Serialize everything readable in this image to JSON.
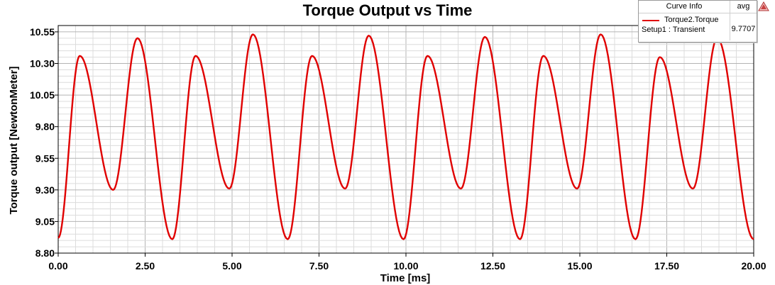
{
  "chart_data": {
    "type": "line",
    "title": "Torque Output vs Time",
    "xlabel": "Time [ms]",
    "ylabel": "Torque output [NewtonMeter]",
    "xlim": [
      0,
      20
    ],
    "ylim": [
      8.8,
      10.6
    ],
    "x_ticks": [
      "0.00",
      "2.50",
      "5.00",
      "7.50",
      "10.00",
      "12.50",
      "15.00",
      "17.50",
      "20.00"
    ],
    "y_ticks": [
      "8.80",
      "9.05",
      "9.30",
      "9.55",
      "9.80",
      "10.05",
      "10.30",
      "10.55"
    ],
    "grid": true,
    "legend_position": "top-right",
    "series": [
      {
        "name": "Torque2.Torque",
        "color": "#e00000",
        "points": [
          [
            0.0,
            8.92
          ],
          [
            0.62,
            10.36
          ],
          [
            1.58,
            9.3
          ],
          [
            2.28,
            10.5
          ],
          [
            3.28,
            8.91
          ],
          [
            3.95,
            10.36
          ],
          [
            4.92,
            9.31
          ],
          [
            5.6,
            10.53
          ],
          [
            6.6,
            8.91
          ],
          [
            7.3,
            10.36
          ],
          [
            8.25,
            9.31
          ],
          [
            8.93,
            10.52
          ],
          [
            9.93,
            8.91
          ],
          [
            10.62,
            10.36
          ],
          [
            11.58,
            9.31
          ],
          [
            12.27,
            10.51
          ],
          [
            13.28,
            8.91
          ],
          [
            13.95,
            10.36
          ],
          [
            14.92,
            9.31
          ],
          [
            15.6,
            10.53
          ],
          [
            16.6,
            8.91
          ],
          [
            17.3,
            10.35
          ],
          [
            18.25,
            9.31
          ],
          [
            18.95,
            10.5
          ],
          [
            20.0,
            8.91
          ]
        ]
      }
    ]
  },
  "legend": {
    "header_info": "Curve Info",
    "header_stat": "avg",
    "curve_name": "Torque2.Torque",
    "curve_setup": "Setup1 : Transient",
    "avg_value": "9.7707"
  }
}
